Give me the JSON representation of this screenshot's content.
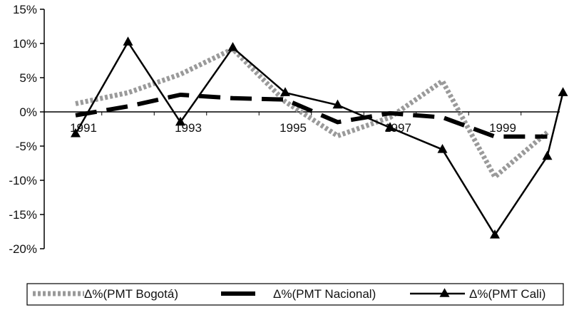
{
  "chart_data": {
    "type": "line",
    "title": "",
    "xlabel": "",
    "ylabel": "",
    "x": [
      1991,
      1992,
      1993,
      1994,
      1995,
      1996,
      1997,
      1998,
      1999,
      2000
    ],
    "x_tick_labels": [
      "1991",
      "1993",
      "1995",
      "1997",
      "1999"
    ],
    "y_tick_labels": [
      "15%",
      "10%",
      "5%",
      "0%",
      "-5%",
      "-10%",
      "-15%",
      "-20%"
    ],
    "ylim": [
      -20,
      15
    ],
    "grid": false,
    "legend_position": "bottom",
    "series": [
      {
        "name": "Δ%(PMT Bogotá)",
        "style": "dotted-thick",
        "color": "#9a9a9a",
        "values": [
          1.2,
          2.8,
          5.5,
          9.2,
          1.5,
          -3.5,
          -0.8,
          4.5,
          -9.5,
          -3.0
        ]
      },
      {
        "name": "Δ%(PMT Nacional)",
        "style": "dashed-thick",
        "color": "#000000",
        "values": [
          -0.5,
          0.8,
          2.5,
          2.0,
          1.8,
          -1.5,
          -0.2,
          -0.8,
          -3.6,
          -3.6
        ]
      },
      {
        "name": "Δ%(PMT Cali)",
        "style": "solid-triangle",
        "color": "#000000",
        "values": [
          -3.2,
          10.2,
          -1.5,
          9.4,
          2.8,
          1.0,
          -2.3,
          -5.5,
          -18.0,
          -6.5,
          2.8
        ],
        "x": [
          1991,
          1992,
          1993,
          1994,
          1995,
          1996,
          1997,
          1998,
          1999,
          2000,
          2000.3
        ]
      }
    ]
  }
}
